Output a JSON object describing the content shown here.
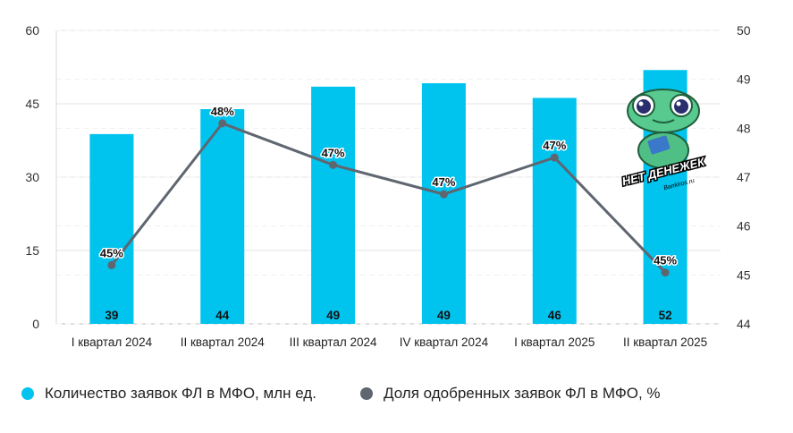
{
  "chart_data": {
    "type": "bar+line",
    "categories": [
      "I квартал 2024",
      "II квартал 2024",
      "III квартал 2024",
      "IV квартал 2024",
      "I квартал 2025",
      "II квартал 2025"
    ],
    "series": [
      {
        "name": "Количество заявок ФЛ в МФО, млн ед.",
        "type": "bar",
        "axis": "left",
        "color": "#00c3ee",
        "values": [
          39,
          44,
          49,
          49,
          46,
          52
        ],
        "labels": [
          "39",
          "44",
          "49",
          "49",
          "46",
          "52"
        ],
        "plot_values": [
          38.8,
          43.9,
          48.5,
          49.2,
          46.2,
          51.9
        ]
      },
      {
        "name": "Доля одобренных заявок ФЛ в МФО, %",
        "type": "line",
        "axis": "right",
        "color": "#5f6670",
        "values": [
          45.2,
          48.1,
          47.25,
          46.65,
          47.4,
          45.05
        ],
        "labels": [
          "45%",
          "48%",
          "47%",
          "47%",
          "47%",
          "45%"
        ]
      }
    ],
    "y_left": {
      "min": 0,
      "max": 60,
      "ticks": [
        "0",
        "15",
        "30",
        "45",
        "60"
      ]
    },
    "y_right": {
      "min": 44,
      "max": 50,
      "ticks": [
        "44",
        "45",
        "46",
        "47",
        "48",
        "49",
        "50"
      ]
    },
    "grid": true,
    "legend_position": "bottom",
    "watermark_text": "НЕТ ДЕНЕЖЕК Bankiros.ru"
  },
  "legend": {
    "bars_label": "Количество заявок ФЛ в МФО, млн ед.",
    "line_label": "Доля одобренных заявок ФЛ в МФО, %"
  }
}
